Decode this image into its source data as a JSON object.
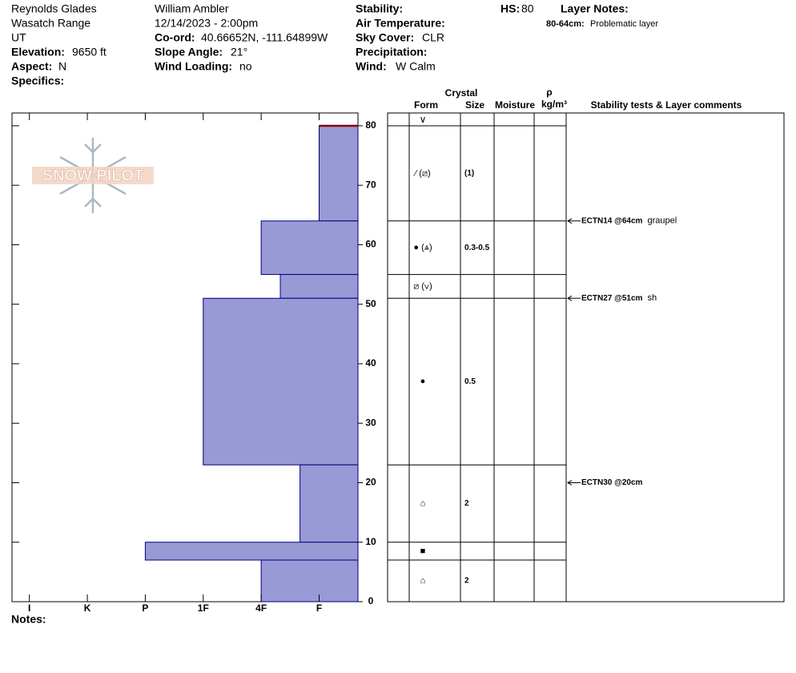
{
  "header": {
    "location": "Reynolds Glades",
    "range": "Wasatch Range",
    "state": "UT",
    "elevation_label": "Elevation:",
    "elevation": "9650 ft",
    "aspect_label": "Aspect:",
    "aspect": "N",
    "specifics_label": "Specifics:",
    "observer": "William Ambler",
    "datetime": "12/14/2023 - 2:00pm",
    "coord_label": "Co-ord:",
    "coord": "40.66652N, -111.64899W",
    "slope_label": "Slope Angle:",
    "slope": "21°",
    "wind_loading_label": "Wind Loading:",
    "wind_loading": "no",
    "stability_label": "Stability:",
    "air_temp_label": "Air Temperature:",
    "sky_label": "Sky Cover:",
    "sky": "CLR",
    "precip_label": "Precipitation:",
    "wind_label": "Wind:",
    "wind": "W Calm",
    "hs_label": "HS:",
    "layer_notes_label": "Layer Notes:",
    "layer_note_range": "80-64cm:",
    "layer_note": "Problematic layer",
    "notes_label": "Notes:",
    "logo": "SNOW PILOT"
  },
  "chart_data": {
    "type": "snow-profile",
    "hs": 80,
    "columns": {
      "crystal": "Crystal",
      "form": "Form",
      "size": "Size",
      "moisture": "Moisture",
      "rho": "ρ",
      "density_unit": "kg/m³",
      "comments": "Stability tests & Layer comments"
    },
    "surface_form": "∨",
    "ylim": [
      0,
      82.15
    ],
    "yticks": [
      0,
      10,
      20,
      30,
      40,
      50,
      60,
      70,
      80
    ],
    "xlim": [
      6.3,
      0.33
    ],
    "xticks": [
      {
        "value": 6,
        "label": "I"
      },
      {
        "value": 5,
        "label": "K"
      },
      {
        "value": 4,
        "label": "P"
      },
      {
        "value": 3,
        "label": "1F"
      },
      {
        "value": 2,
        "label": "4F"
      },
      {
        "value": 1,
        "label": "F"
      }
    ],
    "color": "#9999d6",
    "edge_color": "#000080",
    "layers": [
      {
        "top": 80,
        "bottom": 64,
        "hardness": 1,
        "form": "⁄ (⧄)",
        "size": "(1)"
      },
      {
        "top": 64,
        "bottom": 55,
        "hardness": 2,
        "form": "● (⩓)",
        "size": "0.3-0.5"
      },
      {
        "top": 55,
        "bottom": 51,
        "hardness": 1.67,
        "form": "⧄ (∨)",
        "size": null
      },
      {
        "top": 51,
        "bottom": 23,
        "hardness": 3,
        "form": "●",
        "size": "0.5"
      },
      {
        "top": 23,
        "bottom": 10,
        "hardness": 1.33,
        "form": "⌂",
        "size": "2"
      },
      {
        "top": 10,
        "bottom": 7,
        "hardness": 4,
        "form": "■",
        "size": null
      },
      {
        "top": 7,
        "bottom": 0,
        "hardness": 2,
        "form": "⌂",
        "size": "2"
      }
    ],
    "tests": [
      {
        "label": "ECTN14 @64cm",
        "comment": "graupel",
        "depth": 64
      },
      {
        "label": "ECTN27 @51cm",
        "comment": "sh",
        "depth": 51
      },
      {
        "label": "ECTN30 @20cm",
        "comment": null,
        "depth": 20
      }
    ]
  }
}
